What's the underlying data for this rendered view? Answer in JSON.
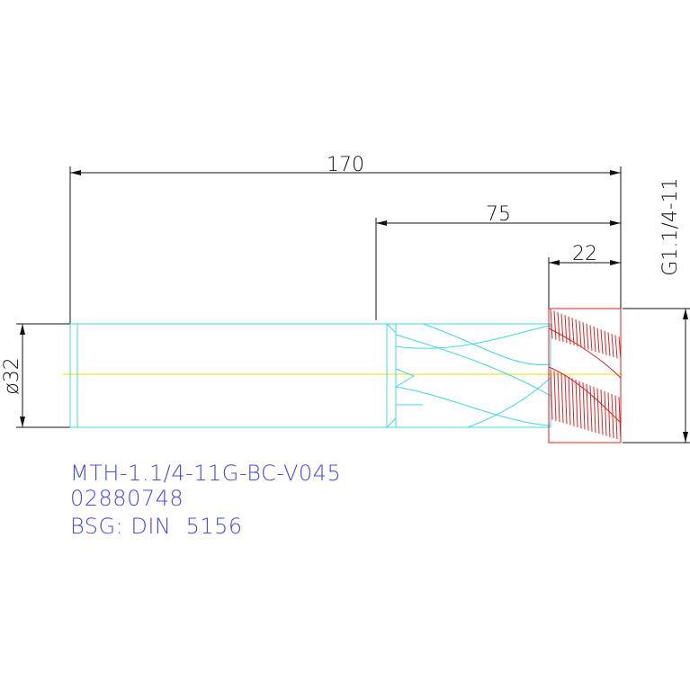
{
  "dimensions": {
    "overall_length": "170",
    "flute_length": "75",
    "thread_length": "22",
    "shank_diameter": "ø32",
    "thread": "G1.1/4-11"
  },
  "labels": {
    "part_number": "MTH-1.1/4-11G-BC-V045",
    "code": "02880748",
    "standard": "BSG: DIN  5156"
  }
}
